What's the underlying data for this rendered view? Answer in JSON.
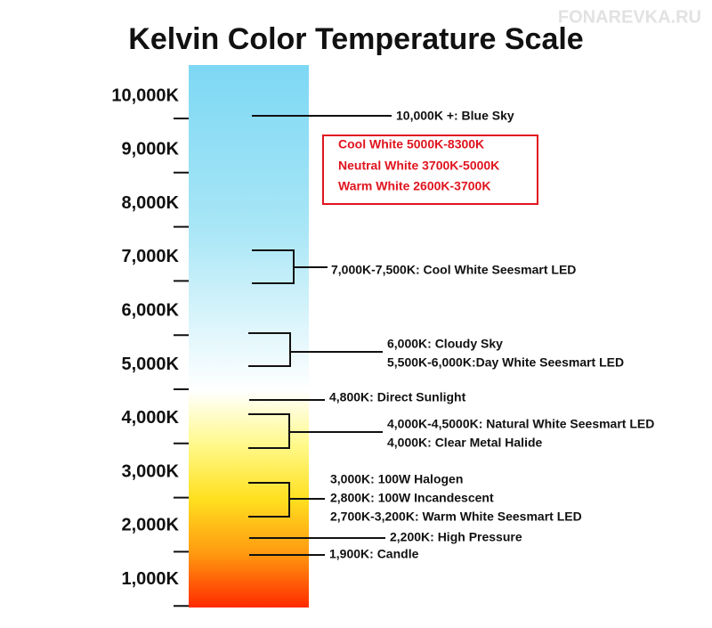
{
  "watermark": "FONAREVKA.RU",
  "title": "Kelvin Color Temperature Scale",
  "axis_labels": [
    "10,000K",
    "9,000K",
    "8,000K",
    "7,000K",
    "6,000K",
    "5,000K",
    "4,000K",
    "3,000K",
    "2,000K",
    "1,000K"
  ],
  "legend": [
    "Cool White 5000K-8300K",
    "Neutral White 3700K-5000K",
    "Warm White 2600K-3700K"
  ],
  "annotations": [
    "10,000K +: Blue Sky",
    "7,000K-7,500K: Cool White Seesmart LED",
    "6,000K: Cloudy Sky",
    "5,500K-6,000K:Day White Seesmart LED",
    "4,800K: Direct Sunlight",
    "4,000K-4,5000K: Natural White Seesmart LED",
    "4,000K: Clear Metal Halide",
    "3,000K: 100W Halogen",
    "2,800K: 100W Incandescent",
    "2,700K-3,200K: Warm White Seesmart LED",
    "2,200K: High Pressure",
    "1,900K: Candle"
  ]
}
